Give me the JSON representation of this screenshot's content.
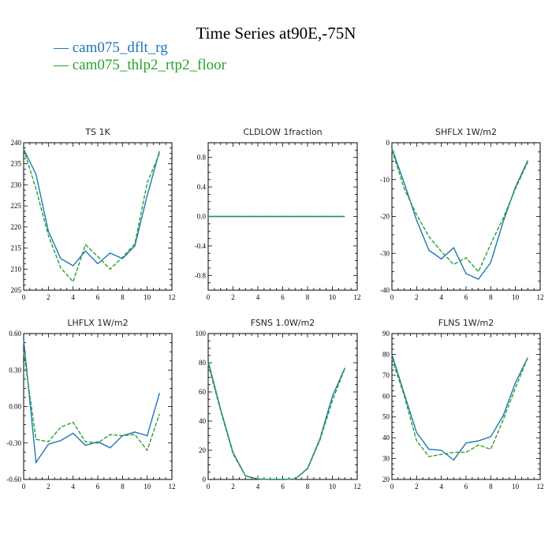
{
  "title": "Time Series at90E,-75N",
  "legend": [
    {
      "label": "cam075_dflt_rg",
      "color": "#1f77b4",
      "dash": "solid"
    },
    {
      "label": "cam075_thlp2_rtp2_floor",
      "color": "#2ca02c",
      "dash": "dashed"
    }
  ],
  "chart_data": [
    {
      "type": "line",
      "title": "TS   1K",
      "xlim": [
        0,
        12
      ],
      "ylim": [
        205,
        240
      ],
      "xticks": [
        0,
        2,
        4,
        6,
        8,
        10,
        12
      ],
      "yticks": [
        205,
        210,
        215,
        220,
        225,
        230,
        235,
        240
      ],
      "ytick_labels": [
        "205",
        "210",
        "215",
        "220",
        "225",
        "230",
        "235",
        "240"
      ],
      "x": [
        0,
        1,
        2,
        3,
        4,
        5,
        6,
        7,
        8,
        9,
        10,
        11
      ],
      "series": [
        {
          "name": "cam075_dflt_rg",
          "values": [
            238.5,
            232.5,
            219,
            212.5,
            210.8,
            214.3,
            211.3,
            213.8,
            212.5,
            215.5,
            227.5,
            238.0
          ]
        },
        {
          "name": "cam075_thlp2_rtp2_floor",
          "values": [
            238.5,
            229,
            218,
            210.3,
            207.0,
            215.8,
            213.0,
            210.0,
            212.8,
            216.0,
            230.5,
            237.5
          ]
        }
      ]
    },
    {
      "type": "line",
      "title": "CLDLOW   1fraction",
      "xlim": [
        0,
        12
      ],
      "ylim": [
        -1,
        1
      ],
      "xticks": [
        0,
        2,
        4,
        6,
        8,
        10,
        12
      ],
      "yticks": [
        -0.8,
        -0.4,
        0,
        0.4,
        0.8
      ],
      "ytick_labels": [
        "-0.8",
        "-0.4",
        "0.0",
        "0.4",
        "0.8"
      ],
      "x": [
        0,
        1,
        2,
        3,
        4,
        5,
        6,
        7,
        8,
        9,
        10,
        11
      ],
      "series": [
        {
          "name": "cam075_dflt_rg",
          "values": [
            0,
            0,
            0,
            0,
            0,
            0,
            0,
            0,
            0,
            0,
            0,
            0
          ]
        },
        {
          "name": "cam075_thlp2_rtp2_floor",
          "values": [
            0,
            0,
            0,
            0,
            0,
            0,
            0,
            0,
            0,
            0,
            0,
            0
          ]
        }
      ]
    },
    {
      "type": "line",
      "title": "SHFLX   1W/m2",
      "xlim": [
        0,
        12
      ],
      "ylim": [
        -40,
        0
      ],
      "xticks": [
        0,
        2,
        4,
        6,
        8,
        10,
        12
      ],
      "yticks": [
        -40,
        -30,
        -20,
        -10,
        0
      ],
      "ytick_labels": [
        "-40",
        "-30",
        "-20",
        "-10",
        "0"
      ],
      "x": [
        0,
        1,
        2,
        3,
        4,
        5,
        6,
        7,
        8,
        9,
        10,
        11
      ],
      "series": [
        {
          "name": "cam075_dflt_rg",
          "values": [
            -1.5,
            -11,
            -21,
            -29.2,
            -31.5,
            -28.5,
            -35.5,
            -37,
            -32.5,
            -21.5,
            -12,
            -4.8
          ]
        },
        {
          "name": "cam075_thlp2_rtp2_floor",
          "values": [
            -2,
            -12.5,
            -19.5,
            -25.5,
            -29.5,
            -33,
            -31.2,
            -35,
            -27.5,
            -20.5,
            -12.5,
            -5.2
          ]
        }
      ]
    },
    {
      "type": "line",
      "title": "LHFLX   1W/m2",
      "xlim": [
        0,
        12
      ],
      "ylim": [
        -0.6,
        0.6
      ],
      "xticks": [
        0,
        2,
        4,
        6,
        8,
        10,
        12
      ],
      "yticks": [
        -0.6,
        -0.3,
        0,
        0.3,
        0.6
      ],
      "ytick_labels": [
        "-0.60",
        "-0.30",
        "0.00",
        "0.30",
        "0.60"
      ],
      "x": [
        0,
        1,
        2,
        3,
        4,
        5,
        6,
        7,
        8,
        9,
        10,
        11
      ],
      "series": [
        {
          "name": "cam075_dflt_rg",
          "values": [
            0.55,
            -0.46,
            -0.31,
            -0.28,
            -0.22,
            -0.32,
            -0.29,
            -0.34,
            -0.24,
            -0.21,
            -0.24,
            0.11
          ]
        },
        {
          "name": "cam075_thlp2_rtp2_floor",
          "values": [
            0.45,
            -0.27,
            -0.29,
            -0.17,
            -0.13,
            -0.29,
            -0.3,
            -0.23,
            -0.24,
            -0.23,
            -0.36,
            -0.06
          ]
        }
      ]
    },
    {
      "type": "line",
      "title": "FSNS   1.0W/m2",
      "xlim": [
        0,
        12
      ],
      "ylim": [
        0,
        100
      ],
      "xticks": [
        0,
        2,
        4,
        6,
        8,
        10,
        12
      ],
      "yticks": [
        0,
        20,
        40,
        60,
        80,
        100
      ],
      "ytick_labels": [
        "0",
        "20",
        "40",
        "60",
        "80",
        "100"
      ],
      "x": [
        0,
        1,
        2,
        3,
        4,
        5,
        6,
        7,
        8,
        9,
        10,
        11
      ],
      "series": [
        {
          "name": "cam075_dflt_rg",
          "values": [
            81,
            48,
            18.5,
            2.5,
            0.3,
            0,
            0,
            0.3,
            7.5,
            28,
            57,
            76.5
          ]
        },
        {
          "name": "cam075_thlp2_rtp2_floor",
          "values": [
            79,
            47,
            17.5,
            2.3,
            0.3,
            0,
            0,
            0.3,
            7.2,
            27,
            54,
            76
          ]
        }
      ]
    },
    {
      "type": "line",
      "title": "FLNS   1W/m2",
      "xlim": [
        0,
        12
      ],
      "ylim": [
        20,
        90
      ],
      "xticks": [
        0,
        2,
        4,
        6,
        8,
        10,
        12
      ],
      "yticks": [
        20,
        30,
        40,
        50,
        60,
        70,
        80,
        90
      ],
      "ytick_labels": [
        "20",
        "30",
        "40",
        "50",
        "60",
        "70",
        "80",
        "90"
      ],
      "x": [
        0,
        1,
        2,
        3,
        4,
        5,
        6,
        7,
        8,
        9,
        10,
        11
      ],
      "series": [
        {
          "name": "cam075_dflt_rg",
          "values": [
            80,
            61,
            42.5,
            34.5,
            34,
            29.3,
            37.5,
            38.5,
            40.5,
            50.5,
            66.5,
            78.5
          ]
        },
        {
          "name": "cam075_thlp2_rtp2_floor",
          "values": [
            78,
            60,
            38.5,
            31,
            32,
            33,
            33,
            36.5,
            34.5,
            48.5,
            64,
            78.5
          ]
        }
      ]
    }
  ]
}
